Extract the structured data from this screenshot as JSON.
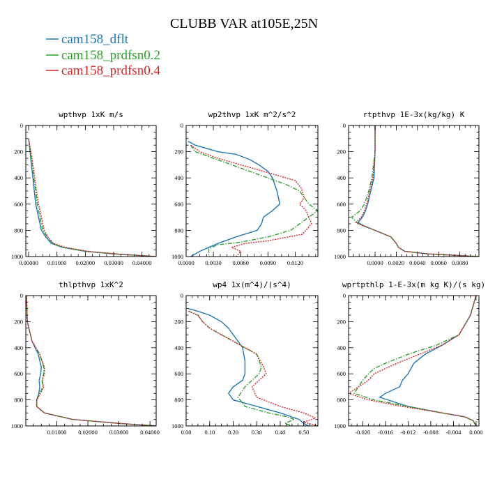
{
  "figure_title": "CLUBB VAR at105E,25N",
  "legend": [
    {
      "label": "cam158_dflt",
      "color": "#1f77b4",
      "dash": "solid"
    },
    {
      "label": "cam158_prdfsn0.2",
      "color": "#2ca02c",
      "dash": "dashdot"
    },
    {
      "label": "cam158_prdfsn0.4",
      "color": "#d62728",
      "dash": "dot"
    }
  ],
  "chart_data": [
    {
      "type": "line",
      "title": "wpthvp  1xK m/s",
      "xlim": [
        -0.001,
        0.045
      ],
      "ylim": [
        1000,
        0
      ],
      "xticks": [
        "0.00000",
        "0.01000",
        "0.02000",
        "0.03000",
        "0.04000"
      ],
      "xtick_values": [
        0,
        0.01,
        0.02,
        0.03,
        0.04
      ],
      "yticks": [
        "0",
        "200",
        "400",
        "600",
        "800",
        "1000"
      ],
      "ytick_values": [
        0,
        200,
        400,
        600,
        800,
        1000
      ],
      "series": [
        {
          "name": "cam158_dflt",
          "x": [
            0,
            0.0005,
            0.001,
            0.0015,
            0.002,
            0.0025,
            0.0035,
            0.0045,
            0.006,
            0.008,
            0.012,
            0.02,
            0.03,
            0.045
          ],
          "y": [
            100,
            200,
            300,
            400,
            500,
            600,
            700,
            800,
            850,
            900,
            930,
            960,
            980,
            1000
          ]
        },
        {
          "name": "cam158_prdfsn0.2",
          "x": [
            0,
            0.0006,
            0.0012,
            0.0018,
            0.0025,
            0.003,
            0.004,
            0.005,
            0.0065,
            0.0085,
            0.012,
            0.02,
            0.03,
            0.045
          ],
          "y": [
            100,
            200,
            300,
            400,
            500,
            600,
            700,
            800,
            850,
            900,
            930,
            960,
            980,
            1000
          ]
        },
        {
          "name": "cam158_prdfsn0.4",
          "x": [
            0,
            0.0008,
            0.0015,
            0.0022,
            0.0028,
            0.0035,
            0.0045,
            0.0055,
            0.0068,
            0.0088,
            0.013,
            0.021,
            0.031,
            0.045
          ],
          "y": [
            100,
            200,
            300,
            400,
            500,
            600,
            700,
            800,
            850,
            900,
            930,
            960,
            980,
            1000
          ]
        }
      ]
    },
    {
      "type": "line",
      "title": "wp2thvp  1xK m^2/s^2",
      "xlim": [
        0,
        0.0145
      ],
      "ylim": [
        1000,
        0
      ],
      "xticks": [
        "0.0000",
        "0.0030",
        "0.0060",
        "0.0090",
        "0.0120"
      ],
      "xtick_values": [
        0,
        0.003,
        0.006,
        0.009,
        0.012
      ],
      "yticks": [
        "0",
        "200",
        "400",
        "600",
        "800",
        "1000"
      ],
      "ytick_values": [
        0,
        200,
        400,
        600,
        800,
        1000
      ],
      "series": [
        {
          "name": "cam158_dflt",
          "x": [
            0.0002,
            0.001,
            0.0035,
            0.0055,
            0.007,
            0.008,
            0.009,
            0.0095,
            0.01,
            0.0103,
            0.0095,
            0.0085,
            0.0083,
            0.0078,
            0.0055,
            0.0035,
            0.0025,
            0.0015,
            0.0005
          ],
          "y": [
            120,
            150,
            200,
            220,
            260,
            300,
            350,
            400,
            500,
            600,
            650,
            700,
            750,
            800,
            850,
            900,
            930,
            960,
            1000
          ]
        },
        {
          "name": "cam158_prdfsn0.2",
          "x": [
            0.0005,
            0.001,
            0.003,
            0.005,
            0.007,
            0.009,
            0.011,
            0.0125,
            0.0135,
            0.0145,
            0.0135,
            0.0125,
            0.0115,
            0.009,
            0.006,
            0.0035,
            0.0025,
            0.0025,
            0.0025
          ],
          "y": [
            150,
            200,
            250,
            300,
            350,
            400,
            450,
            500,
            600,
            650,
            700,
            750,
            800,
            850,
            890,
            910,
            940,
            970,
            1000
          ]
        },
        {
          "name": "cam158_prdfsn0.4",
          "x": [
            0.0005,
            0.0015,
            0.0035,
            0.006,
            0.008,
            0.01,
            0.012,
            0.0127,
            0.013,
            0.0125,
            0.0132,
            0.0138,
            0.0128,
            0.009,
            0.0065,
            0.005,
            0.006,
            0.0055
          ],
          "y": [
            150,
            200,
            250,
            300,
            340,
            380,
            420,
            480,
            550,
            600,
            650,
            750,
            830,
            880,
            900,
            930,
            960,
            1000
          ]
        }
      ]
    },
    {
      "type": "line",
      "title": "rtpthvp  1E-3x(kg/kg) K",
      "xlim": [
        -0.0025,
        0.0098
      ],
      "ylim": [
        1000,
        0
      ],
      "xticks": [
        "0.0000",
        "0.0020",
        "0.0040",
        "0.0060",
        "0.0080"
      ],
      "xtick_values": [
        0,
        0.002,
        0.004,
        0.006,
        0.008
      ],
      "yticks": [
        "0",
        "200",
        "400",
        "600",
        "800",
        "1000"
      ],
      "ytick_values": [
        0,
        200,
        400,
        600,
        800,
        1000
      ],
      "series": [
        {
          "name": "cam158_dflt",
          "x": [
            0,
            0,
            -0.0001,
            -0.0004,
            -0.0007,
            -0.0009,
            -0.0012,
            -0.0016,
            -0.0012,
            0,
            0.0015,
            0.002,
            0.0022,
            0.0028,
            0.005,
            0.0098
          ],
          "y": [
            0,
            200,
            400,
            500,
            600,
            650,
            700,
            740,
            760,
            800,
            850,
            900,
            930,
            960,
            980,
            1000
          ]
        },
        {
          "name": "cam158_prdfsn0.2",
          "x": [
            0,
            0,
            -0.0003,
            -0.0006,
            -0.001,
            -0.0014,
            -0.0022,
            -0.0016,
            0,
            0.0015,
            0.002,
            0.0022,
            0.0028,
            0.005,
            0.0098
          ],
          "y": [
            0,
            200,
            400,
            500,
            600,
            650,
            700,
            750,
            800,
            850,
            900,
            930,
            960,
            980,
            1000
          ]
        },
        {
          "name": "cam158_prdfsn0.4",
          "x": [
            0,
            0,
            -0.0002,
            -0.0005,
            -0.0008,
            -0.001,
            -0.0013,
            -0.0018,
            -0.0013,
            0,
            0.0015,
            0.002,
            0.0022,
            0.0028,
            0.005,
            0.0098
          ],
          "y": [
            0,
            200,
            400,
            500,
            600,
            650,
            700,
            740,
            760,
            800,
            850,
            900,
            930,
            960,
            980,
            1000
          ]
        }
      ]
    },
    {
      "type": "line",
      "title": "thlpthvp  1xK^2",
      "xlim": [
        0,
        0.042
      ],
      "ylim": [
        1000,
        0
      ],
      "xticks": [
        "0.01000",
        "0.02000",
        "0.03000",
        "0.04000"
      ],
      "xtick_values": [
        0.01,
        0.02,
        0.03,
        0.04
      ],
      "yticks": [
        "0",
        "200",
        "400",
        "600",
        "800",
        "1000"
      ],
      "ytick_values": [
        0,
        200,
        400,
        600,
        800,
        1000
      ],
      "series": [
        {
          "name": "cam158_dflt",
          "x": [
            0.0002,
            0.0005,
            0.002,
            0.004,
            0.005,
            0.0048,
            0.0043,
            0.0045,
            0.0042,
            0.0035,
            0.0035,
            0.006,
            0.015,
            0.03,
            0.042
          ],
          "y": [
            0,
            200,
            350,
            450,
            550,
            600,
            650,
            700,
            750,
            800,
            850,
            900,
            950,
            980,
            1000
          ]
        },
        {
          "name": "cam158_prdfsn0.2",
          "x": [
            0.0002,
            0.0005,
            0.002,
            0.0045,
            0.0058,
            0.0058,
            0.0052,
            0.0055,
            0.0045,
            0.0035,
            0.0035,
            0.006,
            0.015,
            0.03,
            0.042
          ],
          "y": [
            0,
            200,
            350,
            450,
            550,
            600,
            650,
            700,
            750,
            800,
            850,
            900,
            950,
            980,
            1000
          ]
        },
        {
          "name": "cam158_prdfsn0.4",
          "x": [
            0.0002,
            0.0005,
            0.002,
            0.0045,
            0.006,
            0.006,
            0.0053,
            0.0058,
            0.0047,
            0.0036,
            0.0035,
            0.006,
            0.015,
            0.03,
            0.042
          ],
          "y": [
            0,
            200,
            350,
            450,
            550,
            600,
            650,
            700,
            750,
            800,
            850,
            900,
            950,
            980,
            1000
          ]
        }
      ]
    },
    {
      "type": "line",
      "title": "wp4  1x(m^4)/(s^4)",
      "xlim": [
        0,
        0.56
      ],
      "ylim": [
        1000,
        0
      ],
      "xticks": [
        "0.00",
        "0.10",
        "0.20",
        "0.30",
        "0.40",
        "0.50"
      ],
      "xtick_values": [
        0,
        0.1,
        0.2,
        0.3,
        0.4,
        0.5
      ],
      "yticks": [
        "0",
        "200",
        "400",
        "600",
        "800",
        "1000"
      ],
      "ytick_values": [
        0,
        200,
        400,
        600,
        800,
        1000
      ],
      "series": [
        {
          "name": "cam158_dflt",
          "x": [
            0.01,
            0.05,
            0.1,
            0.15,
            0.18,
            0.2,
            0.22,
            0.24,
            0.25,
            0.25,
            0.24,
            0.2,
            0.18,
            0.2,
            0.3,
            0.4,
            0.48,
            0.5,
            0.52
          ],
          "y": [
            100,
            120,
            150,
            200,
            250,
            300,
            350,
            400,
            500,
            600,
            650,
            700,
            750,
            800,
            850,
            900,
            950,
            980,
            1000
          ]
        },
        {
          "name": "cam158_prdfsn0.2",
          "x": [
            0.01,
            0.05,
            0.07,
            0.1,
            0.15,
            0.2,
            0.25,
            0.3,
            0.32,
            0.31,
            0.28,
            0.25,
            0.22,
            0.25,
            0.35,
            0.43,
            0.46,
            0.42,
            0.45
          ],
          "y": [
            120,
            150,
            200,
            250,
            300,
            350,
            400,
            450,
            550,
            600,
            650,
            700,
            780,
            850,
            900,
            930,
            950,
            980,
            1000
          ]
        },
        {
          "name": "cam158_prdfsn0.4",
          "x": [
            0.01,
            0.05,
            0.07,
            0.1,
            0.15,
            0.2,
            0.25,
            0.3,
            0.33,
            0.34,
            0.31,
            0.28,
            0.3,
            0.4,
            0.5,
            0.55,
            0.5,
            0.56
          ],
          "y": [
            120,
            150,
            200,
            250,
            300,
            350,
            400,
            450,
            550,
            600,
            650,
            700,
            780,
            850,
            900,
            940,
            970,
            1000
          ]
        }
      ]
    },
    {
      "type": "line",
      "title": "wprtpthlp  1-E-3x(m kg K)/(s kg)",
      "xlim": [
        -0.0225,
        0.0005
      ],
      "ylim": [
        1000,
        0
      ],
      "xticks": [
        "-0.020",
        "-0.016",
        "-0.012",
        "-0.008",
        "-0.004",
        "0.000"
      ],
      "xtick_values": [
        -0.02,
        -0.016,
        -0.012,
        -0.008,
        -0.004,
        0
      ],
      "yticks": [
        "0",
        "200",
        "400",
        "600",
        "800",
        "1000"
      ],
      "ytick_values": [
        0,
        200,
        400,
        600,
        800,
        1000
      ],
      "series": [
        {
          "name": "cam158_dflt",
          "x": [
            0,
            -0.001,
            -0.003,
            -0.006,
            -0.009,
            -0.011,
            -0.012,
            -0.013,
            -0.0135,
            -0.016,
            -0.017,
            -0.012,
            -0.006,
            -0.002,
            -0.0005,
            0
          ],
          "y": [
            0,
            150,
            300,
            380,
            450,
            520,
            600,
            650,
            700,
            750,
            780,
            850,
            900,
            930,
            960,
            1000
          ]
        },
        {
          "name": "cam158_prdfsn0.2",
          "x": [
            0,
            -0.001,
            -0.003,
            -0.007,
            -0.012,
            -0.016,
            -0.018,
            -0.019,
            -0.02,
            -0.0215,
            -0.018,
            -0.012,
            -0.006,
            -0.002,
            -0.0005,
            0
          ],
          "y": [
            0,
            150,
            300,
            380,
            450,
            520,
            560,
            600,
            650,
            750,
            800,
            850,
            900,
            930,
            960,
            1000
          ]
        },
        {
          "name": "cam158_prdfsn0.4",
          "x": [
            0,
            -0.001,
            -0.003,
            -0.006,
            -0.01,
            -0.014,
            -0.016,
            -0.018,
            -0.019,
            -0.0225,
            -0.019,
            -0.013,
            -0.006,
            -0.002,
            -0.0005,
            0
          ],
          "y": [
            0,
            150,
            300,
            380,
            450,
            520,
            560,
            600,
            650,
            750,
            800,
            850,
            900,
            930,
            960,
            1000
          ]
        }
      ]
    }
  ]
}
